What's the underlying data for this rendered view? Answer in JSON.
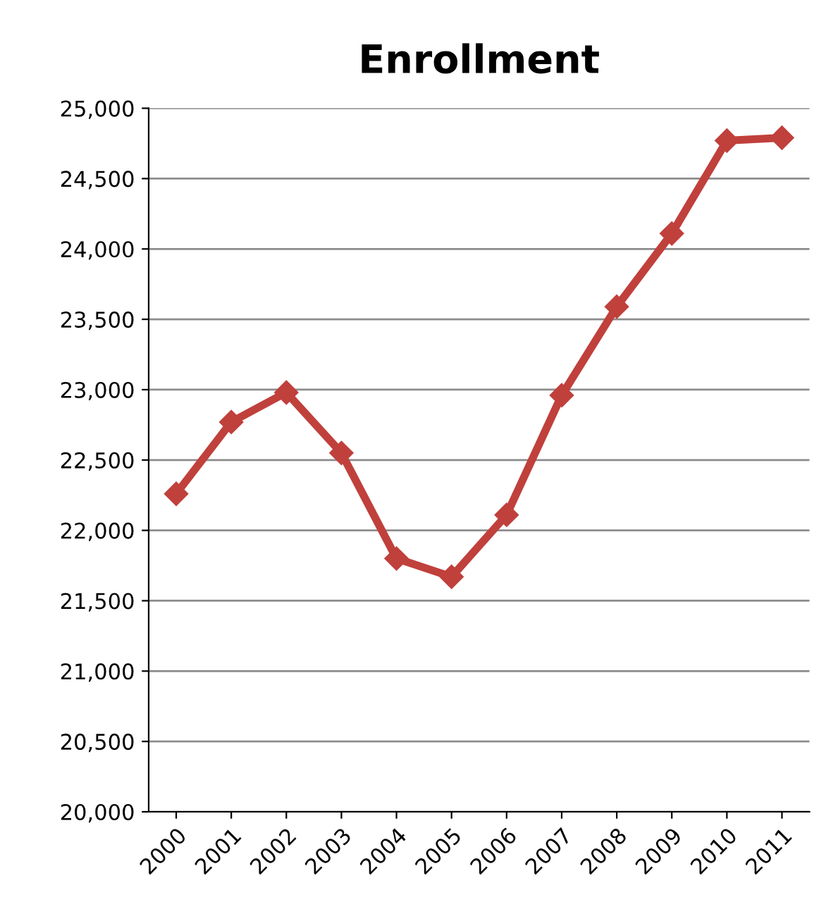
{
  "chart_data": {
    "type": "line",
    "title": "Enrollment",
    "categories": [
      "2000",
      "2001",
      "2002",
      "2003",
      "2004",
      "2005",
      "2006",
      "2007",
      "2008",
      "2009",
      "2010",
      "2011"
    ],
    "series": [
      {
        "color": "#c0403c",
        "values": [
          22260,
          22770,
          22980,
          22550,
          21800,
          21670,
          22110,
          22960,
          23590,
          24110,
          24770,
          24790
        ]
      }
    ],
    "ylim": [
      20000,
      25000
    ],
    "yticks": [
      {
        "value": 20000,
        "label": "20,000"
      },
      {
        "value": 20500,
        "label": "20,500"
      },
      {
        "value": 21000,
        "label": "21,000"
      },
      {
        "value": 21500,
        "label": "21,500"
      },
      {
        "value": 22000,
        "label": "22,000"
      },
      {
        "value": 22500,
        "label": "22,500"
      },
      {
        "value": 23000,
        "label": "23,000"
      },
      {
        "value": 23500,
        "label": "23,500"
      },
      {
        "value": 24000,
        "label": "24,000"
      },
      {
        "value": 24500,
        "label": "24,500"
      },
      {
        "value": 25000,
        "label": "25,000"
      }
    ],
    "grid": "y",
    "marker": "diamond",
    "line_style": "solid"
  }
}
